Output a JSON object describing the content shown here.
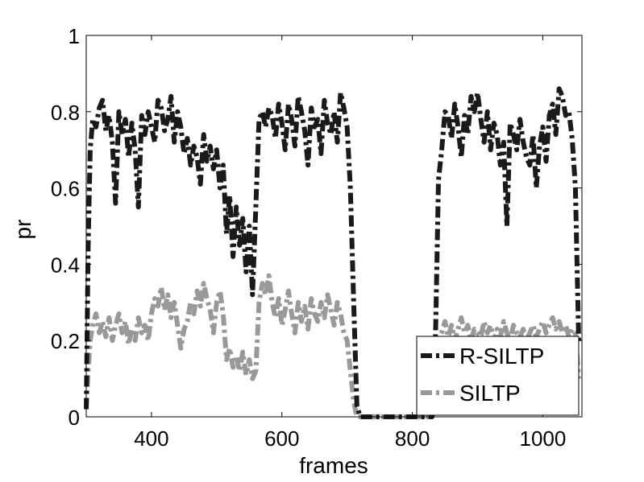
{
  "chart_data": {
    "type": "line",
    "title": "",
    "xlabel": "frames",
    "ylabel": "pr",
    "xlim": [
      300,
      1060
    ],
    "ylim": [
      0,
      1
    ],
    "xticks": [
      400,
      600,
      800,
      1000
    ],
    "xtick_labels": [
      "400",
      "600",
      "800",
      "1000"
    ],
    "yticks": [
      0,
      0.2,
      0.4,
      0.6,
      0.8,
      1
    ],
    "ytick_labels": [
      "0",
      "0.2",
      "0.4",
      "0.6",
      "0.8",
      "1"
    ],
    "grid": false,
    "legend_position": "bottom-right",
    "series": [
      {
        "name": "R-SILTP",
        "color": "#1a1a1a",
        "style": "dash-dot",
        "x": [
          300,
          303,
          306,
          310,
          315,
          320,
          325,
          330,
          335,
          340,
          345,
          350,
          355,
          360,
          365,
          370,
          375,
          380,
          385,
          390,
          395,
          400,
          405,
          410,
          415,
          420,
          425,
          430,
          435,
          440,
          445,
          450,
          455,
          460,
          465,
          470,
          475,
          480,
          485,
          490,
          495,
          500,
          505,
          510,
          515,
          520,
          525,
          530,
          535,
          540,
          545,
          550,
          555,
          560,
          565,
          570,
          575,
          580,
          585,
          590,
          595,
          600,
          605,
          610,
          615,
          620,
          625,
          630,
          635,
          640,
          645,
          650,
          655,
          660,
          665,
          670,
          675,
          680,
          685,
          690,
          695,
          700,
          705,
          710,
          715,
          720,
          830,
          833,
          836,
          840,
          845,
          850,
          855,
          860,
          865,
          870,
          875,
          880,
          885,
          890,
          895,
          900,
          905,
          910,
          915,
          920,
          925,
          930,
          935,
          940,
          945,
          950,
          955,
          960,
          965,
          970,
          975,
          980,
          985,
          990,
          995,
          1000,
          1005,
          1010,
          1015,
          1020,
          1025,
          1030,
          1035,
          1040,
          1045,
          1050,
          1055
        ],
        "y": [
          0.02,
          0.45,
          0.7,
          0.78,
          0.76,
          0.81,
          0.83,
          0.75,
          0.79,
          0.72,
          0.56,
          0.8,
          0.74,
          0.78,
          0.68,
          0.77,
          0.7,
          0.55,
          0.79,
          0.74,
          0.8,
          0.76,
          0.72,
          0.83,
          0.81,
          0.75,
          0.78,
          0.84,
          0.72,
          0.8,
          0.76,
          0.69,
          0.73,
          0.66,
          0.71,
          0.68,
          0.61,
          0.74,
          0.67,
          0.71,
          0.65,
          0.7,
          0.6,
          0.66,
          0.48,
          0.58,
          0.42,
          0.55,
          0.45,
          0.52,
          0.38,
          0.5,
          0.32,
          0.55,
          0.78,
          0.8,
          0.76,
          0.81,
          0.79,
          0.73,
          0.82,
          0.77,
          0.7,
          0.82,
          0.78,
          0.71,
          0.84,
          0.8,
          0.75,
          0.66,
          0.81,
          0.76,
          0.78,
          0.69,
          0.83,
          0.77,
          0.74,
          0.8,
          0.72,
          0.85,
          0.81,
          0.76,
          0.6,
          0.3,
          0.03,
          0.0,
          0.0,
          0.02,
          0.25,
          0.62,
          0.7,
          0.8,
          0.79,
          0.73,
          0.82,
          0.76,
          0.68,
          0.79,
          0.74,
          0.84,
          0.8,
          0.85,
          0.78,
          0.72,
          0.8,
          0.7,
          0.77,
          0.74,
          0.66,
          0.72,
          0.5,
          0.77,
          0.74,
          0.7,
          0.78,
          0.72,
          0.68,
          0.66,
          0.74,
          0.6,
          0.71,
          0.76,
          0.67,
          0.79,
          0.82,
          0.74,
          0.86,
          0.84,
          0.79,
          0.8,
          0.73,
          0.6,
          0.2
        ],
        "x_break_note": ""
      },
      {
        "name": "SILTP",
        "color": "#999999",
        "style": "dash-dot",
        "x": [
          300,
          303,
          306,
          310,
          315,
          320,
          325,
          330,
          335,
          340,
          345,
          350,
          355,
          360,
          365,
          370,
          375,
          380,
          385,
          390,
          395,
          400,
          405,
          410,
          415,
          420,
          425,
          430,
          435,
          440,
          445,
          450,
          455,
          460,
          465,
          470,
          475,
          480,
          485,
          490,
          495,
          500,
          505,
          510,
          515,
          520,
          525,
          530,
          535,
          540,
          545,
          550,
          555,
          560,
          565,
          570,
          575,
          580,
          585,
          590,
          595,
          600,
          605,
          610,
          615,
          620,
          625,
          630,
          635,
          640,
          645,
          650,
          655,
          660,
          665,
          670,
          675,
          680,
          685,
          690,
          695,
          700,
          705,
          710,
          715,
          720,
          830,
          833,
          836,
          840,
          845,
          850,
          855,
          860,
          865,
          870,
          875,
          880,
          885,
          890,
          895,
          900,
          905,
          910,
          915,
          920,
          925,
          930,
          935,
          940,
          945,
          950,
          955,
          960,
          965,
          970,
          975,
          980,
          985,
          990,
          995,
          1000,
          1005,
          1010,
          1015,
          1020,
          1025,
          1030,
          1035,
          1040,
          1045,
          1050,
          1055
        ],
        "y": [
          0.02,
          0.12,
          0.2,
          0.24,
          0.27,
          0.22,
          0.25,
          0.21,
          0.26,
          0.2,
          0.24,
          0.27,
          0.22,
          0.25,
          0.19,
          0.23,
          0.2,
          0.26,
          0.22,
          0.24,
          0.2,
          0.27,
          0.31,
          0.29,
          0.34,
          0.28,
          0.32,
          0.26,
          0.3,
          0.24,
          0.18,
          0.23,
          0.25,
          0.3,
          0.27,
          0.33,
          0.29,
          0.35,
          0.31,
          0.28,
          0.22,
          0.3,
          0.33,
          0.27,
          0.15,
          0.18,
          0.13,
          0.16,
          0.12,
          0.17,
          0.11,
          0.15,
          0.1,
          0.12,
          0.3,
          0.35,
          0.32,
          0.37,
          0.3,
          0.26,
          0.31,
          0.24,
          0.28,
          0.33,
          0.27,
          0.22,
          0.3,
          0.25,
          0.29,
          0.23,
          0.31,
          0.27,
          0.25,
          0.3,
          0.26,
          0.32,
          0.28,
          0.24,
          0.3,
          0.27,
          0.22,
          0.2,
          0.12,
          0.04,
          0.0,
          0.0,
          0.0,
          0.02,
          0.1,
          0.2,
          0.22,
          0.25,
          0.21,
          0.24,
          0.2,
          0.23,
          0.26,
          0.22,
          0.24,
          0.2,
          0.23,
          0.22,
          0.21,
          0.25,
          0.22,
          0.24,
          0.2,
          0.23,
          0.21,
          0.25,
          0.22,
          0.2,
          0.24,
          0.22,
          0.21,
          0.23,
          0.2,
          0.22,
          0.24,
          0.21,
          0.23,
          0.25,
          0.22,
          0.24,
          0.26,
          0.23,
          0.25,
          0.22,
          0.24,
          0.21,
          0.23,
          0.22,
          0.1
        ]
      }
    ]
  }
}
